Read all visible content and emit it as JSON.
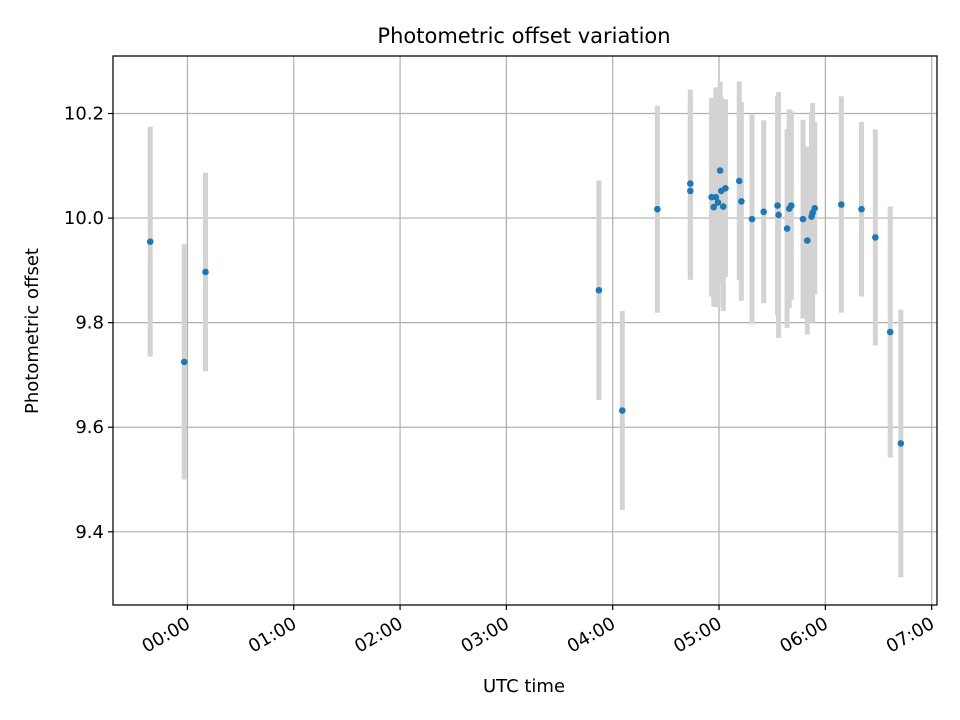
{
  "chart_data": {
    "type": "scatter",
    "title": "Photometric offset variation",
    "xlabel": "UTC time",
    "ylabel": "Photometric offset",
    "grid": true,
    "x_unit": "hours since 00:00 UTC",
    "xlim": [
      -0.7,
      7.05
    ],
    "ylim": [
      9.26,
      10.31
    ],
    "xticks": [
      {
        "value": 0,
        "label": "00:00"
      },
      {
        "value": 1,
        "label": "01:00"
      },
      {
        "value": 2,
        "label": "02:00"
      },
      {
        "value": 3,
        "label": "03:00"
      },
      {
        "value": 4,
        "label": "04:00"
      },
      {
        "value": 5,
        "label": "05:00"
      },
      {
        "value": 6,
        "label": "06:00"
      },
      {
        "value": 7,
        "label": "07:00"
      }
    ],
    "yticks": [
      {
        "value": 9.4,
        "label": "9.4"
      },
      {
        "value": 9.6,
        "label": "9.6"
      },
      {
        "value": 9.8,
        "label": "9.8"
      },
      {
        "value": 10.0,
        "label": "10.0"
      },
      {
        "value": 10.2,
        "label": "10.2"
      }
    ],
    "colors": {
      "point": "#1f77b4",
      "errorbar": "#d3d3d3",
      "grid": "#b0b0b0"
    },
    "points": [
      {
        "x": -0.35,
        "y": 9.955,
        "yerr": 0.22
      },
      {
        "x": -0.03,
        "y": 9.725,
        "yerr": 0.225
      },
      {
        "x": 0.17,
        "y": 9.897,
        "yerr": 0.19
      },
      {
        "x": 3.87,
        "y": 9.862,
        "yerr": 0.21
      },
      {
        "x": 4.09,
        "y": 9.632,
        "yerr": 0.19
      },
      {
        "x": 4.42,
        "y": 10.017,
        "yerr": 0.198
      },
      {
        "x": 4.73,
        "y": 10.066,
        "yerr": 0.18
      },
      {
        "x": 4.73,
        "y": 10.052,
        "yerr": 0.17
      },
      {
        "x": 4.93,
        "y": 10.04,
        "yerr": 0.19
      },
      {
        "x": 4.95,
        "y": 10.021,
        "yerr": 0.19
      },
      {
        "x": 4.97,
        "y": 10.04,
        "yerr": 0.21
      },
      {
        "x": 4.99,
        "y": 10.03,
        "yerr": 0.2
      },
      {
        "x": 5.01,
        "y": 10.091,
        "yerr": 0.17
      },
      {
        "x": 5.02,
        "y": 10.052,
        "yerr": 0.18
      },
      {
        "x": 5.04,
        "y": 10.022,
        "yerr": 0.2
      },
      {
        "x": 5.06,
        "y": 10.057,
        "yerr": 0.17
      },
      {
        "x": 5.19,
        "y": 10.071,
        "yerr": 0.19
      },
      {
        "x": 5.21,
        "y": 10.032,
        "yerr": 0.19
      },
      {
        "x": 5.31,
        "y": 9.998,
        "yerr": 0.2
      },
      {
        "x": 5.42,
        "y": 10.012,
        "yerr": 0.175
      },
      {
        "x": 5.55,
        "y": 10.024,
        "yerr": 0.21
      },
      {
        "x": 5.56,
        "y": 10.006,
        "yerr": 0.235
      },
      {
        "x": 5.64,
        "y": 9.98,
        "yerr": 0.19
      },
      {
        "x": 5.66,
        "y": 10.018,
        "yerr": 0.19
      },
      {
        "x": 5.68,
        "y": 10.024,
        "yerr": 0.18
      },
      {
        "x": 5.79,
        "y": 9.998,
        "yerr": 0.19
      },
      {
        "x": 5.83,
        "y": 9.957,
        "yerr": 0.18
      },
      {
        "x": 5.87,
        "y": 10.003,
        "yerr": 0.2
      },
      {
        "x": 5.88,
        "y": 10.01,
        "yerr": 0.21
      },
      {
        "x": 5.9,
        "y": 10.019,
        "yerr": 0.165
      },
      {
        "x": 6.15,
        "y": 10.026,
        "yerr": 0.207
      },
      {
        "x": 6.34,
        "y": 10.017,
        "yerr": 0.167
      },
      {
        "x": 6.47,
        "y": 9.963,
        "yerr": 0.207
      },
      {
        "x": 6.61,
        "y": 9.782,
        "yerr": 0.24
      },
      {
        "x": 6.71,
        "y": 9.569,
        "yerr": 0.256
      }
    ]
  }
}
